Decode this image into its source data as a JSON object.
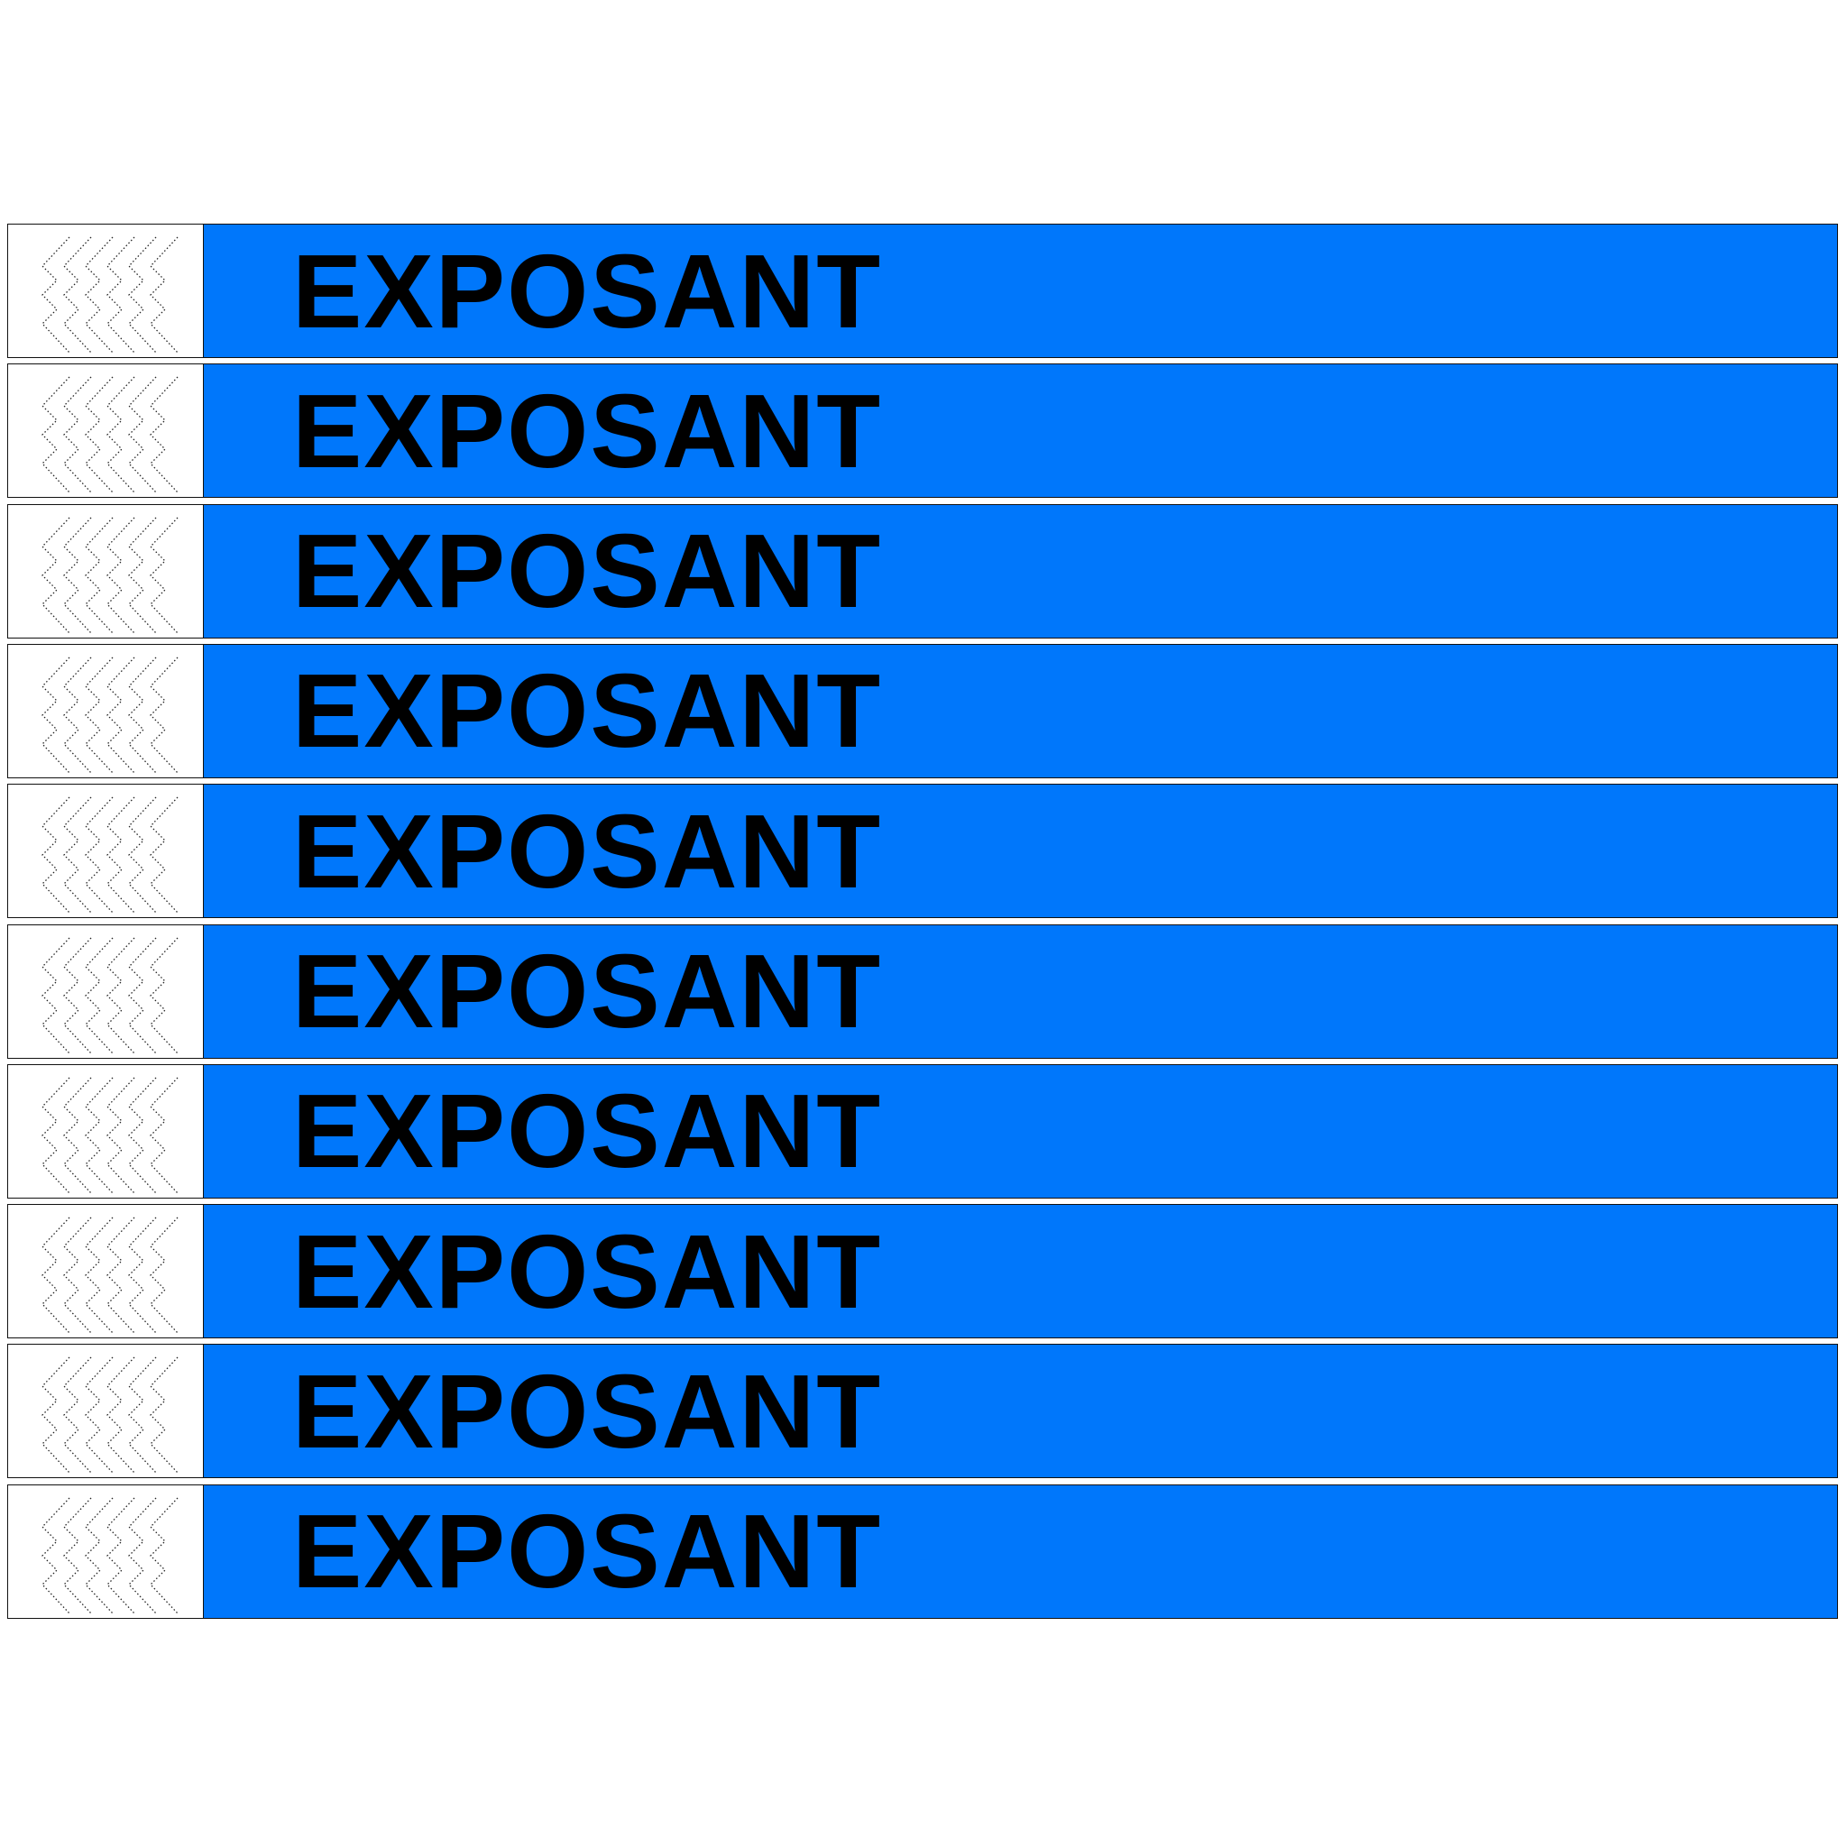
{
  "wristbands": [
    {
      "label": "EXPOSANT"
    },
    {
      "label": "EXPOSANT"
    },
    {
      "label": "EXPOSANT"
    },
    {
      "label": "EXPOSANT"
    },
    {
      "label": "EXPOSANT"
    },
    {
      "label": "EXPOSANT"
    },
    {
      "label": "EXPOSANT"
    },
    {
      "label": "EXPOSANT"
    },
    {
      "label": "EXPOSANT"
    },
    {
      "label": "EXPOSANT"
    }
  ],
  "colors": {
    "band": "#0077fb",
    "tab": "#ffffff",
    "text": "#000000"
  },
  "tab_icon": "security-chevron-pattern-icon"
}
